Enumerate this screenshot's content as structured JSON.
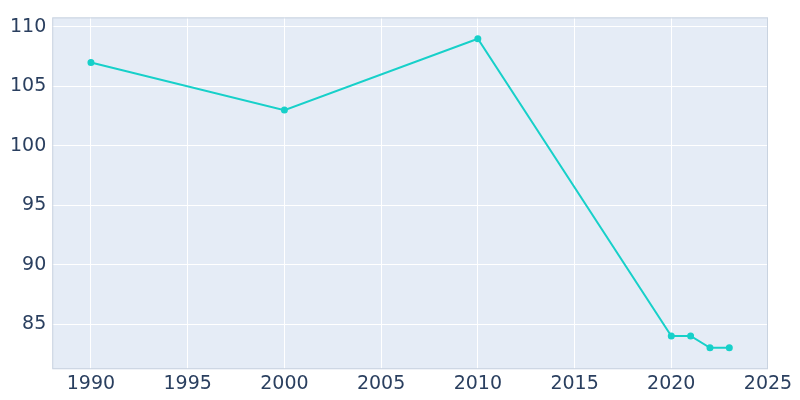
{
  "chart_data": {
    "type": "line",
    "x": [
      1990,
      2000,
      2010,
      2020,
      2021,
      2022,
      2023
    ],
    "values": [
      107,
      103,
      109,
      84,
      84,
      83,
      83
    ],
    "color": "#17d0c9",
    "marker": "circle",
    "xlim": [
      1988,
      2025
    ],
    "xticks": [
      1990,
      1995,
      2000,
      2005,
      2010,
      2015,
      2020,
      2025
    ],
    "ylim": [
      81.2,
      110.8
    ],
    "yticks": [
      85,
      90,
      95,
      100,
      105,
      110
    ],
    "grid": true
  }
}
